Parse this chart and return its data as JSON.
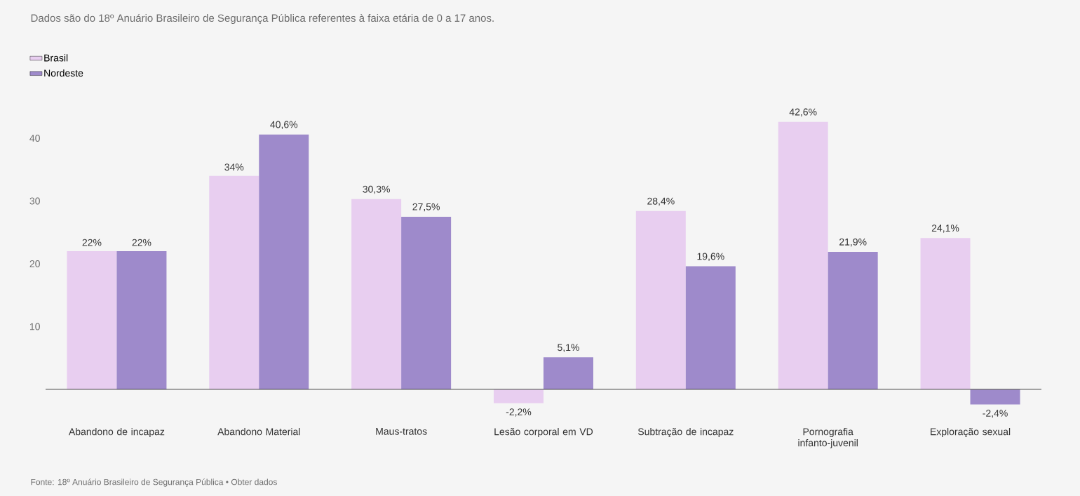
{
  "chart_data": {
    "type": "bar",
    "title": "Dados são do 18º Anuário Brasileiro de Segurança Pública referentes à faixa etária de 0 a 17 anos.",
    "categories": [
      "Abandono de incapaz",
      "Abandono Material",
      "Maus-tratos",
      "Lesão corporal em VD",
      "Subtração de incapaz",
      "Pornografia infanto-juvenil",
      "Exploração sexual"
    ],
    "series": [
      {
        "name": "Brasil",
        "color": "#e8cef0",
        "values": [
          22,
          34,
          30.3,
          -2.2,
          28.4,
          42.6,
          24.1
        ],
        "value_labels": [
          "22%",
          "34%",
          "30,3%",
          "-2,2%",
          "28,4%",
          "42,6%",
          "24,1%"
        ]
      },
      {
        "name": "Nordeste",
        "color": "#9e8acb",
        "values": [
          22,
          40.6,
          27.5,
          5.1,
          19.6,
          21.9,
          -2.4
        ],
        "value_labels": [
          "22%",
          "40,6%",
          "27,5%",
          "5,1%",
          "19,6%",
          "21,9%",
          "-2,4%"
        ]
      }
    ],
    "ylim": [
      -2.4,
      42.6
    ],
    "yticks": [
      10,
      20,
      30,
      40
    ],
    "legend": "top left",
    "annotations": [
      "Fonte: 18º Anuário Brasileiro de Segurança Pública • Obter dados"
    ]
  }
}
